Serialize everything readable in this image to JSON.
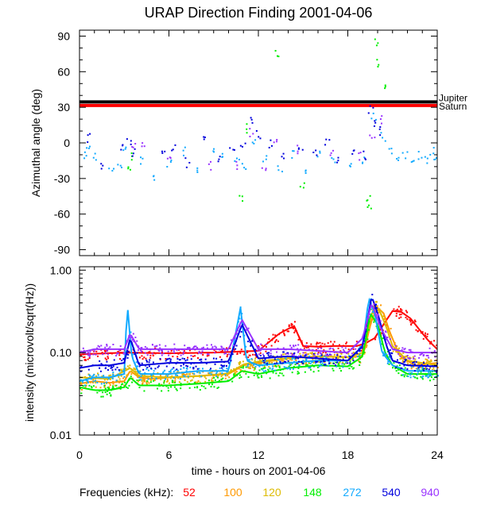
{
  "chart_data": [
    {
      "type": "scatter",
      "title": "URAP Direction Finding  2001-04-06",
      "ylabel": "Azimuthal angle (deg)",
      "xlim": [
        0,
        24
      ],
      "ylim": [
        -95,
        95
      ],
      "xticks": [
        0,
        6,
        12,
        18,
        24
      ],
      "yticks": [
        90,
        60,
        30,
        0,
        -30,
        -60,
        -90
      ],
      "grid": false,
      "reference_lines": [
        {
          "name": "Jupiter",
          "value": 34.5,
          "color": "#000000"
        },
        {
          "name": "Saturn",
          "value": 31.5,
          "color": "#ff0000"
        }
      ],
      "series": [
        {
          "name": "52",
          "points": []
        },
        {
          "name": "100",
          "points": []
        },
        {
          "name": "120",
          "points": []
        },
        {
          "name": "148",
          "points": [
            [
              3.4,
              -12
            ],
            [
              10.8,
              -47
            ],
            [
              13.2,
              76
            ],
            [
              14.9,
              -36
            ],
            [
              19.3,
              -47
            ],
            [
              19.4,
              -52
            ],
            [
              19.8,
              85
            ],
            [
              19.9,
              68
            ],
            [
              20.4,
              50
            ],
            [
              11.2,
              13
            ],
            [
              3.3,
              -18
            ]
          ]
        },
        {
          "name": "272",
          "points": [
            [
              0.3,
              -10
            ],
            [
              0.6,
              -4
            ],
            [
              1.0,
              -12
            ],
            [
              2.1,
              -22
            ],
            [
              2.6,
              -20
            ],
            [
              3.0,
              -6
            ],
            [
              4.2,
              -15
            ],
            [
              5.0,
              -30
            ],
            [
              6.0,
              -18
            ],
            [
              7.0,
              -6
            ],
            [
              7.8,
              -24
            ],
            [
              8.9,
              -4
            ],
            [
              9.6,
              -10
            ],
            [
              10.5,
              -15
            ],
            [
              11.0,
              -20
            ],
            [
              11.7,
              4
            ],
            [
              12.4,
              -12
            ],
            [
              13.4,
              -22
            ],
            [
              14.3,
              -10
            ],
            [
              15.2,
              -25
            ],
            [
              16.0,
              -8
            ],
            [
              17.0,
              -12
            ],
            [
              18.1,
              -18
            ],
            [
              18.9,
              -15
            ],
            [
              19.7,
              22
            ],
            [
              20.3,
              6
            ],
            [
              20.8,
              -8
            ],
            [
              21.3,
              -15
            ],
            [
              21.8,
              -9
            ],
            [
              22.3,
              -18
            ],
            [
              22.8,
              -10
            ],
            [
              23.2,
              -14
            ],
            [
              23.6,
              -6
            ],
            [
              23.9,
              -12
            ]
          ]
        },
        {
          "name": "540",
          "points": [
            [
              0.6,
              5
            ],
            [
              1.4,
              -18
            ],
            [
              2.8,
              -2
            ],
            [
              3.3,
              0
            ],
            [
              3.6,
              -8
            ],
            [
              5.5,
              -8
            ],
            [
              6.3,
              -3
            ],
            [
              7.2,
              -16
            ],
            [
              8.2,
              3
            ],
            [
              9.2,
              -12
            ],
            [
              10.2,
              -5
            ],
            [
              10.9,
              1
            ],
            [
              11.4,
              18
            ],
            [
              12.0,
              8
            ],
            [
              12.8,
              0
            ],
            [
              13.6,
              -9
            ],
            [
              14.8,
              -2
            ],
            [
              15.8,
              -9
            ],
            [
              16.6,
              2
            ],
            [
              17.4,
              -14
            ],
            [
              18.4,
              -5
            ],
            [
              19.0,
              -10
            ],
            [
              19.5,
              28
            ],
            [
              19.8,
              18
            ],
            [
              20.1,
              11
            ]
          ]
        },
        {
          "name": "940",
          "points": [
            [
              3.6,
              -3
            ],
            [
              4.2,
              -2
            ],
            [
              5.9,
              -12
            ],
            [
              8.6,
              -19
            ],
            [
              10.6,
              -18
            ],
            [
              11.5,
              10
            ],
            [
              12.3,
              -20
            ],
            [
              13.1,
              2
            ],
            [
              14.5,
              -5
            ],
            [
              16.8,
              -6
            ],
            [
              18.7,
              -10
            ],
            [
              19.6,
              8
            ],
            [
              20.2,
              21
            ]
          ]
        }
      ]
    },
    {
      "type": "scatter",
      "ylabel": "intensity (microvolt/sqrt(Hz))",
      "xlabel": "time - hours on 2001-04-06",
      "xlim": [
        0,
        24
      ],
      "ylim": [
        0.01,
        1.1
      ],
      "yscale": "log",
      "xticks": [
        0,
        6,
        12,
        18,
        24
      ],
      "yticks": [
        1.0,
        0.1,
        0.01
      ],
      "ytick_labels": [
        "1.00",
        "0.10",
        "0.01"
      ],
      "grid": false,
      "series": [
        {
          "name": "52",
          "x": [
            0,
            3,
            6,
            9,
            12,
            13.4,
            13.9,
            14.4,
            15,
            16,
            17,
            18,
            18.6,
            19.2,
            19.8,
            20.4,
            21,
            21.6,
            22.2,
            22.8,
            23.4,
            24
          ],
          "y": [
            0.095,
            0.1,
            0.098,
            0.1,
            0.105,
            0.17,
            0.19,
            0.21,
            0.12,
            0.118,
            0.12,
            0.12,
            0.12,
            0.13,
            0.15,
            0.22,
            0.32,
            0.31,
            0.26,
            0.19,
            0.14,
            0.11
          ]
        },
        {
          "name": "100",
          "x": [
            0,
            1,
            2,
            3,
            3.4,
            4,
            5,
            6,
            8,
            10,
            11,
            12,
            14,
            16,
            18,
            19,
            19.6,
            20,
            20.4,
            20.8,
            21.5,
            22.5,
            24
          ],
          "y": [
            0.042,
            0.045,
            0.043,
            0.045,
            0.06,
            0.05,
            0.048,
            0.05,
            0.052,
            0.055,
            0.07,
            0.075,
            0.085,
            0.09,
            0.088,
            0.09,
            0.25,
            0.35,
            0.3,
            0.18,
            0.09,
            0.07,
            0.075
          ]
        },
        {
          "name": "120",
          "x": [
            0,
            2,
            3.4,
            4,
            6,
            8,
            10,
            11,
            12,
            14,
            16,
            18,
            19,
            19.5,
            19.8,
            20.2,
            20.6,
            21,
            22,
            24
          ],
          "y": [
            0.05,
            0.048,
            0.065,
            0.052,
            0.05,
            0.052,
            0.056,
            0.072,
            0.078,
            0.086,
            0.09,
            0.088,
            0.1,
            0.25,
            0.38,
            0.3,
            0.2,
            0.12,
            0.08,
            0.07
          ]
        },
        {
          "name": "148",
          "x": [
            0,
            1,
            2,
            3,
            3.4,
            4,
            6,
            8,
            10,
            10.9,
            12,
            14,
            16,
            18,
            19,
            19.5,
            20,
            20.5,
            21,
            22,
            24
          ],
          "y": [
            0.038,
            0.035,
            0.035,
            0.038,
            0.05,
            0.04,
            0.04,
            0.042,
            0.045,
            0.06,
            0.055,
            0.065,
            0.07,
            0.068,
            0.09,
            0.3,
            0.22,
            0.1,
            0.07,
            0.055,
            0.055
          ]
        },
        {
          "name": "272",
          "x": [
            0,
            1,
            2,
            3,
            3.2,
            3.5,
            4,
            6,
            8,
            10,
            10.8,
            11.2,
            12,
            14,
            16,
            18,
            19,
            19.4,
            19.8,
            20.3,
            21,
            22,
            24
          ],
          "y": [
            0.045,
            0.05,
            0.05,
            0.055,
            0.4,
            0.09,
            0.055,
            0.055,
            0.06,
            0.06,
            0.35,
            0.08,
            0.07,
            0.075,
            0.08,
            0.08,
            0.12,
            0.45,
            0.3,
            0.1,
            0.07,
            0.06,
            0.06
          ]
        },
        {
          "name": "540",
          "x": [
            0,
            1,
            2,
            3,
            3.4,
            4,
            6,
            8,
            10,
            10.9,
            12,
            14,
            16,
            18,
            19,
            19.6,
            20.0,
            20.6,
            21,
            22,
            24
          ],
          "y": [
            0.065,
            0.07,
            0.07,
            0.075,
            0.15,
            0.07,
            0.075,
            0.075,
            0.078,
            0.22,
            0.085,
            0.09,
            0.085,
            0.08,
            0.12,
            0.48,
            0.3,
            0.12,
            0.08,
            0.07,
            0.068
          ]
        },
        {
          "name": "940",
          "x": [
            0,
            1,
            2,
            3,
            3.4,
            4,
            6,
            8,
            10,
            10.9,
            12,
            14,
            16,
            18,
            19,
            19.6,
            20.2,
            21,
            22,
            24
          ],
          "y": [
            0.1,
            0.11,
            0.11,
            0.11,
            0.17,
            0.11,
            0.11,
            0.11,
            0.11,
            0.25,
            0.11,
            0.11,
            0.105,
            0.1,
            0.15,
            0.4,
            0.2,
            0.11,
            0.1,
            0.1
          ]
        }
      ]
    }
  ],
  "legend": {
    "label": "Frequencies (kHz):",
    "entries": [
      {
        "name": "52",
        "color": "#ff0000"
      },
      {
        "name": "100",
        "color": "#ff9900"
      },
      {
        "name": "120",
        "color": "#ddbb00"
      },
      {
        "name": "148",
        "color": "#00ee00"
      },
      {
        "name": "272",
        "color": "#11aaff"
      },
      {
        "name": "540",
        "color": "#0000dd"
      },
      {
        "name": "940",
        "color": "#9933ff"
      }
    ]
  }
}
